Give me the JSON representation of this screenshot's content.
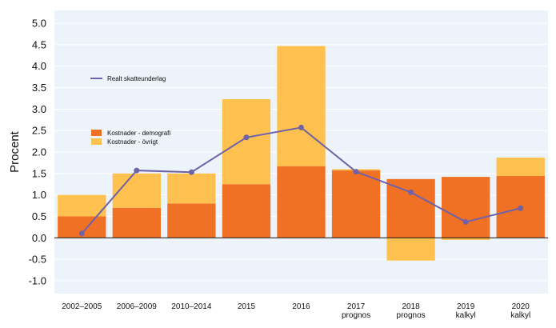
{
  "chart_data": {
    "type": "bar",
    "stacked": true,
    "ylabel": "Procent",
    "ylim": [
      -1.3,
      5.3
    ],
    "yticks": [
      -1.0,
      -0.5,
      0.0,
      0.5,
      1.0,
      1.5,
      2.0,
      2.5,
      3.0,
      3.5,
      4.0,
      4.5,
      5.0
    ],
    "ytick_labels": [
      "-1.0",
      "-0.5",
      "0.0",
      "0.5",
      "1.0",
      "1.5",
      "2.0",
      "2.5",
      "3.0",
      "3.5",
      "4.0",
      "4.5",
      "5.0"
    ],
    "grid": true,
    "categories": [
      [
        "2002–2005"
      ],
      [
        "2006–2009"
      ],
      [
        "2010–2014"
      ],
      [
        "2015"
      ],
      [
        "2016"
      ],
      [
        "2017",
        "prognos"
      ],
      [
        "2018",
        "prognos"
      ],
      [
        "2019",
        "kalkyl"
      ],
      [
        "2020",
        "kalkyl"
      ]
    ],
    "series": [
      {
        "name": "Kostnader - demografi",
        "type": "bar",
        "color": "#f07024",
        "values": [
          0.5,
          0.7,
          0.8,
          1.25,
          1.67,
          1.57,
          1.37,
          1.42,
          1.44
        ]
      },
      {
        "name": "Kostnader - övrigt",
        "type": "bar",
        "color": "#fec04f",
        "values": [
          0.5,
          0.8,
          0.7,
          1.98,
          2.8,
          0.03,
          -0.53,
          -0.05,
          0.43
        ]
      },
      {
        "name": "Realt skatteunderlag",
        "type": "line",
        "color": "#6f62a8",
        "values": [
          0.1,
          1.57,
          1.53,
          2.34,
          2.57,
          1.54,
          1.06,
          0.37,
          0.69
        ]
      }
    ],
    "legend": [
      "Realt skatteunderlag",
      "Kostnader - demografi",
      "Kostnader - övrigt"
    ]
  }
}
